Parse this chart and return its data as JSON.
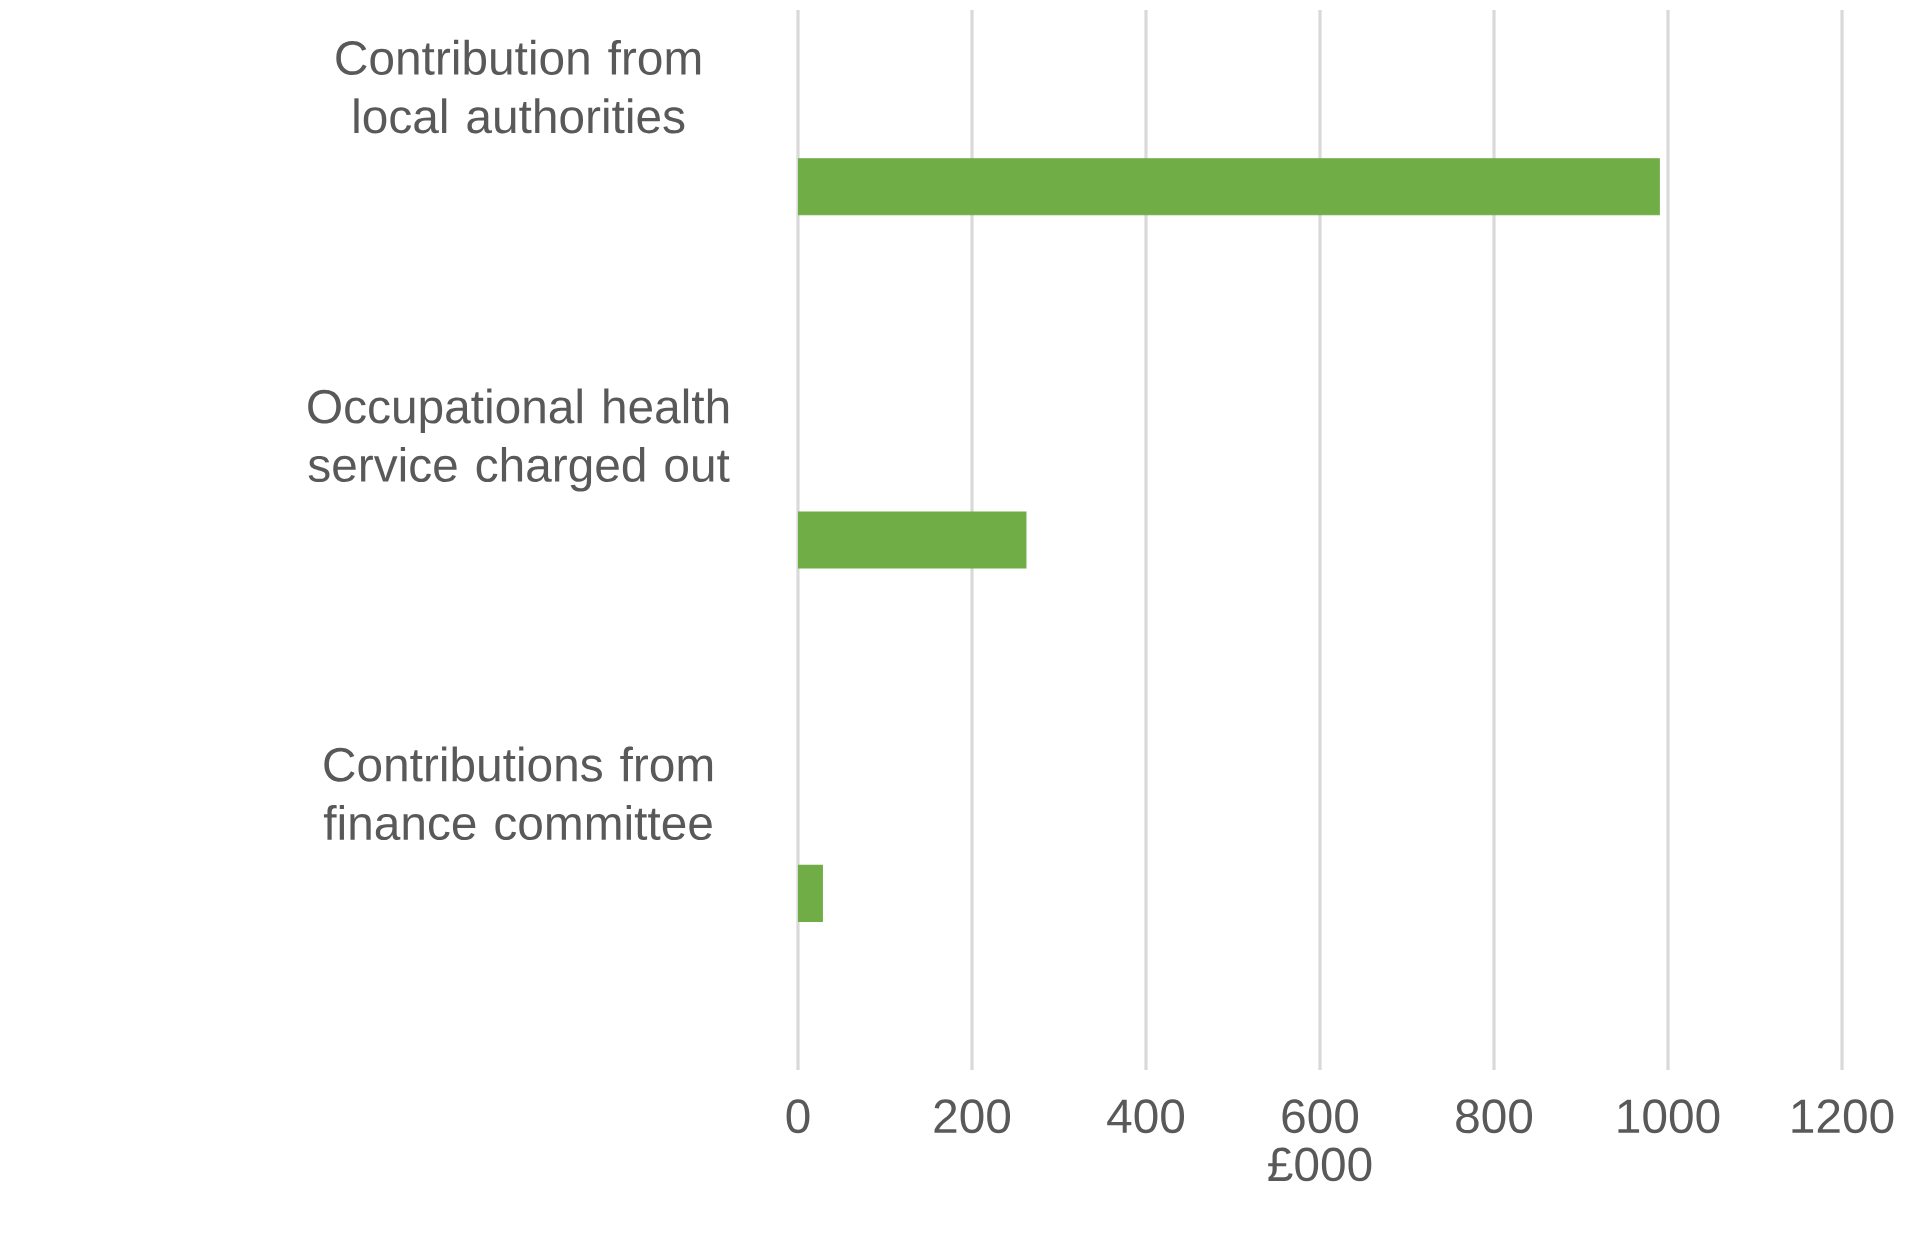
{
  "chart_data": {
    "type": "bar",
    "orientation": "horizontal",
    "xlabel": "£000",
    "categories": [
      "Contribution from local authorities",
      "Occupational health service charged out",
      "Contributions from finance committee"
    ],
    "values": [
      990,
      262,
      28
    ],
    "color": "#70ad47",
    "xlim": [
      0,
      1200
    ],
    "xticks": [
      0,
      200,
      400,
      600,
      800,
      1000,
      1200
    ],
    "grid": "x"
  }
}
